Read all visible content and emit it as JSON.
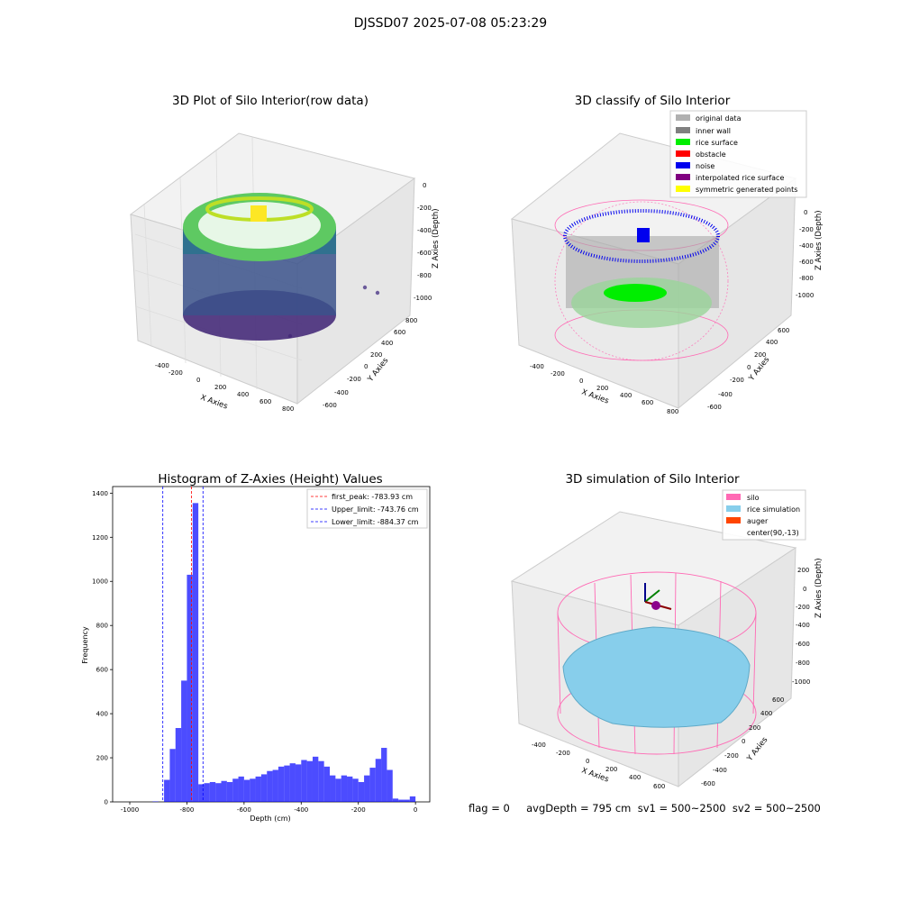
{
  "suptitle": "DJSSD07 2025-07-08 05:23:29",
  "footer": "flag = 0     avgDepth = 795 cm  sv1 = 500~2500  sv2 = 500~2500",
  "panels": {
    "raw": {
      "title": "3D Plot of Silo Interior(row data)",
      "xlabel": "X Axies",
      "ylabel": "Y Axies",
      "zlabel": "Z Axies (Depth)",
      "xticks": [
        "-400",
        "-200",
        "0",
        "200",
        "400",
        "600",
        "800"
      ],
      "yticks": [
        "-600",
        "-400",
        "-200",
        "0",
        "200",
        "400",
        "600",
        "800"
      ],
      "zticks": [
        "0",
        "-200",
        "-400",
        "-600",
        "-800",
        "-1000"
      ]
    },
    "classify": {
      "title": "3D classify of Silo Interior",
      "xlabel": "X Axies",
      "ylabel": "Y Axies",
      "zlabel": "Z Axies (Depth)",
      "xticks": [
        "-400",
        "-200",
        "0",
        "200",
        "400",
        "600",
        "800"
      ],
      "yticks": [
        "-600",
        "-400",
        "-200",
        "0",
        "200",
        "400",
        "600"
      ],
      "zticks": [
        "0",
        "-200",
        "-400",
        "-600",
        "-800",
        "-1000"
      ],
      "legend": [
        {
          "label": "original data",
          "color": "#b0b0b0"
        },
        {
          "label": "inner wall",
          "color": "#808080"
        },
        {
          "label": "rice surface",
          "color": "#00ee00"
        },
        {
          "label": "obstacle",
          "color": "#ff0000"
        },
        {
          "label": "noise",
          "color": "#0000ee"
        },
        {
          "label": "interpolated rice surface",
          "color": "#800080"
        },
        {
          "label": "symmetric generated points",
          "color": "#ffff00"
        }
      ]
    },
    "simulation": {
      "title": "3D simulation of Silo Interior",
      "xlabel": "X Axies",
      "ylabel": "Y Axies",
      "zlabel": "Z Axies (Depth)",
      "xticks": [
        "-400",
        "-200",
        "0",
        "200",
        "400",
        "600"
      ],
      "yticks": [
        "-600",
        "-400",
        "-200",
        "0",
        "200",
        "400",
        "600"
      ],
      "zticks": [
        "200",
        "0",
        "-200",
        "-400",
        "-600",
        "-800",
        "-1000"
      ],
      "legend": [
        {
          "label": "silo",
          "color": "#ff69b4"
        },
        {
          "label": "rice simulation",
          "color": "#87ceeb"
        },
        {
          "label": "auger",
          "color": "#ff4500"
        },
        {
          "label": "center(90,-13)",
          "color": ""
        }
      ]
    }
  },
  "chart_data": [
    {
      "type": "bar",
      "title": "Histogram of Z-Axies (Height) Values",
      "xlabel": "Depth (cm)",
      "ylabel": "Frequency",
      "xlim": [
        -1060,
        50
      ],
      "ylim": [
        0,
        1430
      ],
      "xticks": [
        -1000,
        -800,
        -600,
        -400,
        -200,
        0
      ],
      "yticks": [
        0,
        200,
        400,
        600,
        800,
        1000,
        1200,
        1400
      ],
      "bar_color": "#0000ff",
      "bin_edges": [
        -1000,
        -980,
        -960,
        -940,
        -920,
        -900,
        -880,
        -860,
        -840,
        -820,
        -800,
        -780,
        -760,
        -740,
        -720,
        -700,
        -680,
        -660,
        -640,
        -620,
        -600,
        -580,
        -560,
        -540,
        -520,
        -500,
        -480,
        -460,
        -440,
        -420,
        -400,
        -380,
        -360,
        -340,
        -320,
        -300,
        -280,
        -260,
        -240,
        -220,
        -200,
        -180,
        -160,
        -140,
        -120,
        -100,
        -80,
        -60,
        -40,
        -20,
        0,
        20
      ],
      "counts": [
        0,
        0,
        0,
        0,
        2,
        0,
        100,
        240,
        335,
        550,
        1030,
        1355,
        80,
        85,
        90,
        85,
        95,
        90,
        105,
        115,
        100,
        105,
        115,
        125,
        140,
        145,
        160,
        165,
        175,
        170,
        190,
        185,
        205,
        185,
        160,
        120,
        105,
        120,
        115,
        105,
        90,
        120,
        155,
        195,
        245,
        145,
        15,
        10,
        10,
        25,
        0
      ],
      "vlines": [
        {
          "x": -783.93,
          "label": "first_peak: -783.93 cm",
          "color": "#ff0000"
        },
        {
          "x": -743.76,
          "label": "Upper_limit: -743.76 cm",
          "color": "#0000ff"
        },
        {
          "x": -884.37,
          "label": "Lower_limit: -884.37 cm",
          "color": "#0000ff"
        }
      ],
      "legend_position": "top-right"
    }
  ]
}
